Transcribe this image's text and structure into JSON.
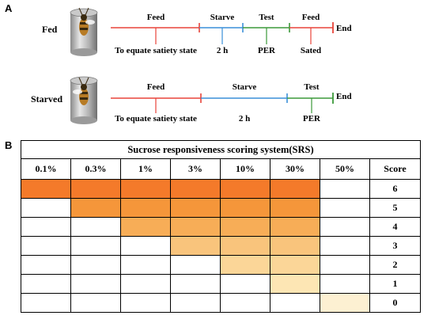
{
  "panel_a_label": "A",
  "panel_b_label": "B",
  "colors": {
    "feed": "#e8443a",
    "starve": "#3a8fd9",
    "test": "#3b9a3a",
    "cell_colors": [
      "#f47a2a",
      "#f5963a",
      "#f7ad57",
      "#f9c47c",
      "#fbd698",
      "#fde6b4",
      "#fdf0d2"
    ]
  },
  "fed": {
    "condition": "Fed",
    "segments": [
      {
        "label": "Feed",
        "color": "#e8443a"
      },
      {
        "label": "Starve",
        "color": "#3a8fd9"
      },
      {
        "label": "Test",
        "color": "#3b9a3a"
      },
      {
        "label": "Feed",
        "color": "#e8443a"
      }
    ],
    "end_label": "End",
    "sublabels": [
      "To equate satiety state",
      "2 h",
      "PER",
      "Sated"
    ]
  },
  "starved": {
    "condition": "Starved",
    "segments": [
      {
        "label": "Feed",
        "color": "#e8443a"
      },
      {
        "label": "Starve",
        "color": "#3a8fd9"
      },
      {
        "label": "Test",
        "color": "#3b9a3a"
      }
    ],
    "end_label": "End",
    "sublabels": [
      "To equate satiety state",
      "2 h",
      "PER"
    ]
  },
  "table": {
    "title": "Sucrose responsiveness scoring system(SRS)",
    "concentrations": [
      "0.1%",
      "0.3%",
      "1%",
      "3%",
      "10%",
      "30%",
      "50%"
    ],
    "score_header": "Score",
    "rows": [
      {
        "score": "6",
        "filled_from": 0,
        "filled_to": 5
      },
      {
        "score": "5",
        "filled_from": 1,
        "filled_to": 5
      },
      {
        "score": "4",
        "filled_from": 2,
        "filled_to": 5
      },
      {
        "score": "3",
        "filled_from": 3,
        "filled_to": 5
      },
      {
        "score": "2",
        "filled_from": 4,
        "filled_to": 5
      },
      {
        "score": "1",
        "filled_from": 5,
        "filled_to": 5
      },
      {
        "score": "0",
        "filled_from": 6,
        "filled_to": 6
      }
    ]
  }
}
